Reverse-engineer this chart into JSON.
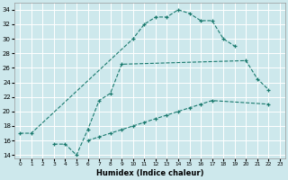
{
  "xlabel": "Humidex (Indice chaleur)",
  "bg_color": "#cde8ec",
  "grid_color": "#ffffff",
  "line_color": "#1a7a6e",
  "xlim": [
    -0.5,
    23.5
  ],
  "ylim": [
    13.5,
    35
  ],
  "xticks": [
    0,
    1,
    2,
    3,
    4,
    5,
    6,
    7,
    8,
    9,
    10,
    11,
    12,
    13,
    14,
    15,
    16,
    17,
    18,
    19,
    20,
    21,
    22,
    23
  ],
  "yticks": [
    14,
    16,
    18,
    20,
    22,
    24,
    26,
    28,
    30,
    32,
    34
  ],
  "series": [
    {
      "x": [
        0,
        1,
        10,
        11,
        12,
        13,
        14,
        15,
        16,
        17,
        18,
        19
      ],
      "y": [
        17.0,
        17.0,
        30.0,
        32.0,
        33.0,
        33.0,
        34.0,
        33.5,
        32.5,
        32.5,
        30.0,
        29.0
      ]
    },
    {
      "x": [
        3,
        4,
        5,
        6,
        7,
        8,
        9,
        20,
        21,
        22
      ],
      "y": [
        15.5,
        15.5,
        14.0,
        17.5,
        21.5,
        22.5,
        26.5,
        27.0,
        24.5,
        23.0
      ]
    },
    {
      "x": [
        6,
        7,
        8,
        9,
        10,
        11,
        12,
        13,
        14,
        15,
        16,
        17,
        22
      ],
      "y": [
        16.0,
        16.5,
        17.0,
        17.5,
        18.0,
        18.5,
        19.0,
        19.5,
        20.0,
        20.5,
        21.0,
        21.5,
        21.0
      ]
    }
  ]
}
